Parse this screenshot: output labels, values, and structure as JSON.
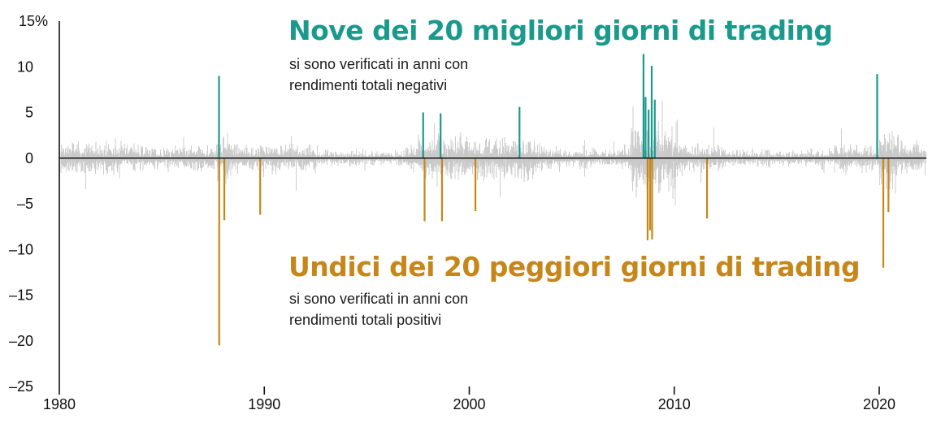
{
  "colors": {
    "best": "#1a9a8c",
    "worst": "#c7861a",
    "noise": "#c9c9c9",
    "axis": "#111111"
  },
  "annotations": {
    "best": {
      "title": "Nove dei 20 migliori giorni di trading",
      "line1": "si sono verificati in anni con",
      "line2": "rendimenti totali negativi"
    },
    "worst": {
      "title": "Undici dei 20 peggiori giorni di trading",
      "line1": "si sono verificati in anni con",
      "line2": "rendimenti totali positivi"
    }
  },
  "chart_data": {
    "type": "bar",
    "xlim": [
      1980,
      2022.3
    ],
    "ylim": [
      -25,
      15
    ],
    "x_ticks": [
      {
        "value": 1980,
        "label": "1980"
      },
      {
        "value": 1990,
        "label": "1990"
      },
      {
        "value": 2000,
        "label": "2000"
      },
      {
        "value": 2010,
        "label": "2010"
      },
      {
        "value": 2020,
        "label": "2020"
      }
    ],
    "y_ticks": [
      {
        "value": 15,
        "label": "15%"
      },
      {
        "value": 10,
        "label": "10"
      },
      {
        "value": 5,
        "label": "5"
      },
      {
        "value": 0,
        "label": "0"
      },
      {
        "value": -5,
        "label": "–5"
      },
      {
        "value": -10,
        "label": "–10"
      },
      {
        "value": -15,
        "label": "–15"
      },
      {
        "value": -20,
        "label": "–20"
      },
      {
        "value": -25,
        "label": "–25"
      }
    ],
    "series": [
      {
        "values": [
          {
            "x": 1987.79,
            "y": 9.0
          },
          {
            "x": 1997.75,
            "y": 5.0
          },
          {
            "x": 1998.6,
            "y": 4.9
          },
          {
            "x": 2002.45,
            "y": 5.6
          },
          {
            "x": 2008.5,
            "y": 11.4
          },
          {
            "x": 2008.6,
            "y": 6.7
          },
          {
            "x": 2008.75,
            "y": 5.3
          },
          {
            "x": 2008.9,
            "y": 10.1
          },
          {
            "x": 2009.05,
            "y": 6.4
          },
          {
            "x": 2019.9,
            "y": 9.2
          }
        ]
      },
      {
        "values": [
          {
            "x": 1987.8,
            "y": -20.5
          },
          {
            "x": 1988.05,
            "y": -6.8
          },
          {
            "x": 1989.8,
            "y": -6.2
          },
          {
            "x": 1997.82,
            "y": -6.9
          },
          {
            "x": 1998.67,
            "y": -6.9
          },
          {
            "x": 2000.3,
            "y": -5.8
          },
          {
            "x": 2008.7,
            "y": -9.0
          },
          {
            "x": 2008.82,
            "y": -7.9
          },
          {
            "x": 2008.92,
            "y": -8.9
          },
          {
            "x": 2011.6,
            "y": -6.6
          },
          {
            "x": 2020.2,
            "y": -12.0
          },
          {
            "x": 2020.45,
            "y": -5.9
          }
        ]
      }
    ]
  }
}
